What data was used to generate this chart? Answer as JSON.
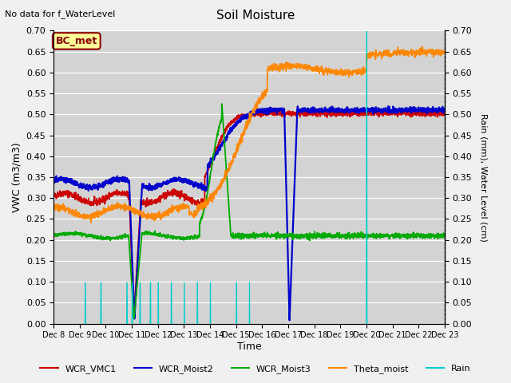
{
  "title": "Soil Moisture",
  "subtitle": "No data for f_WaterLevel",
  "xlabel": "Time",
  "ylabel_left": "VWC (m3/m3)",
  "ylabel_right": "Rain (mm), Water Level (cm)",
  "annotation_box": "BC_met",
  "x_tick_labels": [
    "Dec 8",
    "Dec 9",
    "Dec 10",
    "Dec 11",
    "Dec 12",
    "Dec 13",
    "Dec 14",
    "Dec 15",
    "Dec 16",
    "Dec 17",
    "Dec 18",
    "Dec 19",
    "Dec 20",
    "Dec 21",
    "Dec 22",
    "Dec 23"
  ],
  "colors": {
    "WCR_VMC1": "#cc0000",
    "WCR_Moist2": "#0000cc",
    "WCR_Moist3": "#00aa00",
    "Theta_moist": "#ff8800",
    "Rain": "#00cccc"
  },
  "yticks": [
    0.0,
    0.05,
    0.1,
    0.15,
    0.2,
    0.25,
    0.3,
    0.35,
    0.4,
    0.45,
    0.5,
    0.55,
    0.6,
    0.65,
    0.7
  ],
  "ylim": [
    0.0,
    0.7
  ],
  "fig_bg": "#f0f0f0",
  "plot_bg": "#d3d3d3",
  "grid_color": "#ffffff"
}
